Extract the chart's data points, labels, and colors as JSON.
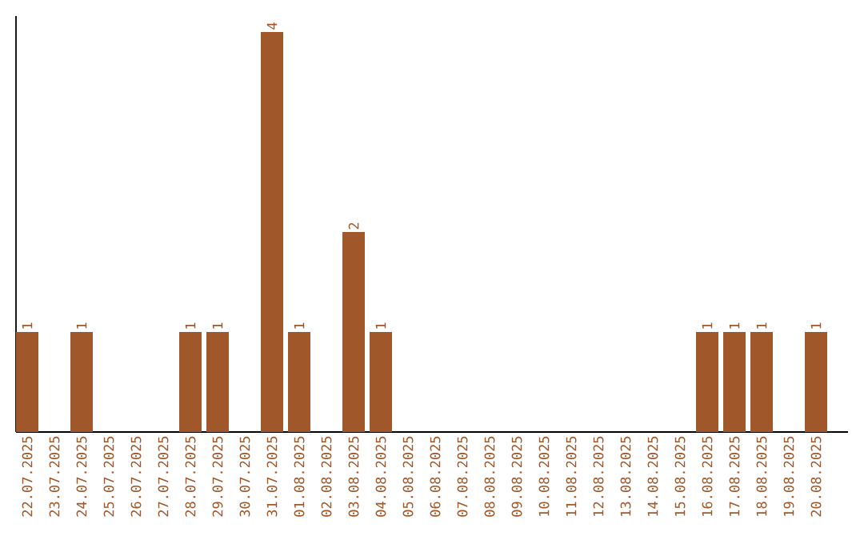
{
  "chart_data": {
    "type": "bar",
    "color": "#a0582a",
    "categories": [
      "22.07.2025",
      "23.07.2025",
      "24.07.2025",
      "25.07.2025",
      "26.07.2025",
      "27.07.2025",
      "28.07.2025",
      "29.07.2025",
      "30.07.2025",
      "31.07.2025",
      "01.08.2025",
      "02.08.2025",
      "03.08.2025",
      "04.08.2025",
      "05.08.2025",
      "06.08.2025",
      "07.08.2025",
      "08.08.2025",
      "09.08.2025",
      "10.08.2025",
      "11.08.2025",
      "12.08.2025",
      "13.08.2025",
      "14.08.2025",
      "15.08.2025",
      "16.08.2025",
      "17.08.2025",
      "18.08.2025",
      "19.08.2025",
      "20.08.2025"
    ],
    "values": [
      1,
      0,
      1,
      0,
      0,
      0,
      1,
      1,
      0,
      4,
      1,
      0,
      2,
      1,
      0,
      0,
      0,
      0,
      0,
      0,
      0,
      0,
      0,
      0,
      0,
      1,
      1,
      1,
      0,
      1
    ],
    "value_labels": [
      "1",
      null,
      "1",
      null,
      null,
      null,
      "1",
      "1",
      null,
      "4",
      "1",
      null,
      "2",
      "1",
      null,
      null,
      null,
      null,
      null,
      null,
      null,
      null,
      null,
      null,
      null,
      "1",
      "1",
      "1",
      null,
      "1"
    ],
    "tick_labels": "x"
  }
}
